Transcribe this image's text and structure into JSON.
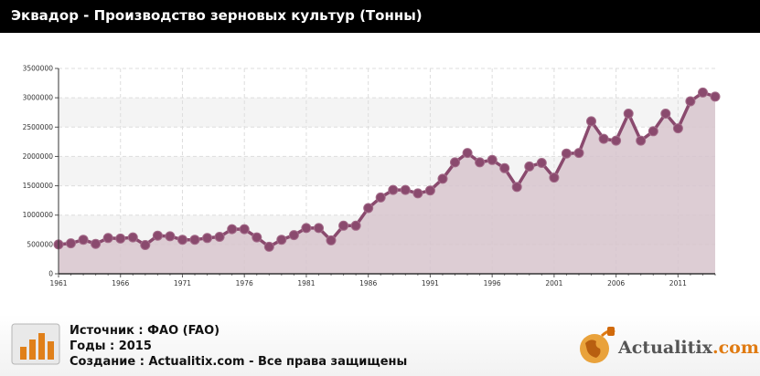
{
  "title": "Эквадор - Производство зерновых культур (Тонны)",
  "footer": {
    "source": "Источник : ФАО (FAO)",
    "years": "Годы : 2015",
    "created": "Создание : Actualitix.com -  Все права защищены"
  },
  "brand": {
    "name_main": "Actualitix",
    "name_suffix": ".com"
  },
  "colors": {
    "line": "#8a4a6e",
    "area": "#d7c4cd",
    "marker": "#8a4a6e",
    "title_bg": "#000000"
  },
  "chart_data": {
    "type": "area",
    "x": [
      1961,
      1962,
      1963,
      1964,
      1965,
      1966,
      1967,
      1968,
      1969,
      1970,
      1971,
      1972,
      1973,
      1974,
      1975,
      1976,
      1977,
      1978,
      1979,
      1980,
      1981,
      1982,
      1983,
      1984,
      1985,
      1986,
      1987,
      1988,
      1989,
      1990,
      1991,
      1992,
      1993,
      1994,
      1995,
      1996,
      1997,
      1998,
      1999,
      2000,
      2001,
      2002,
      2003,
      2004,
      2005,
      2006,
      2007,
      2008,
      2009,
      2010,
      2011,
      2012,
      2013,
      2014
    ],
    "values": [
      500000,
      520000,
      580000,
      510000,
      610000,
      600000,
      620000,
      490000,
      650000,
      640000,
      580000,
      580000,
      610000,
      630000,
      760000,
      760000,
      620000,
      460000,
      580000,
      660000,
      780000,
      780000,
      570000,
      820000,
      820000,
      1120000,
      1300000,
      1430000,
      1430000,
      1370000,
      1420000,
      1620000,
      1900000,
      2060000,
      1900000,
      1940000,
      1800000,
      1480000,
      1830000,
      1890000,
      1640000,
      2050000,
      2060000,
      2600000,
      2300000,
      2270000,
      2730000,
      2270000,
      2430000,
      2730000,
      2480000,
      2940000,
      3090000,
      3020000
    ],
    "xticks": [
      "1961",
      "1966",
      "1971",
      "1976",
      "1981",
      "1986",
      "1991",
      "1996",
      "2001",
      "2006",
      "2011"
    ],
    "yticks": [
      "0",
      "500000",
      "1000000",
      "1500000",
      "2000000",
      "2500000",
      "3000000",
      "3500000"
    ],
    "ylim": [
      0,
      3500000
    ],
    "grid": true
  }
}
